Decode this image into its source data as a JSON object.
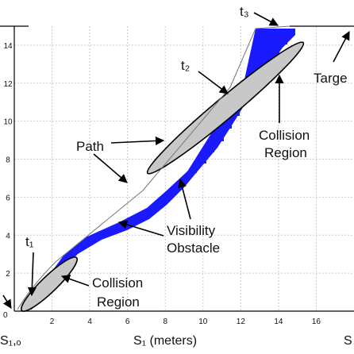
{
  "chart_data": {
    "type": "diagram",
    "xlabel": "S₁  (meters)",
    "x_ticks": [
      "0",
      "2",
      "4",
      "6",
      "8",
      "10",
      "12",
      "14",
      "16"
    ],
    "y_ticks": [
      "2",
      "4",
      "6",
      "8",
      "10",
      "12",
      "14"
    ],
    "y_zero_tick": "0",
    "s1o_label": "S₁,ₒ",
    "right_edge_label": "S",
    "xlim": [
      0,
      18
    ],
    "ylim": [
      0,
      15
    ],
    "grid": true,
    "annotations": {
      "t3": "t₃",
      "t2": "t₂",
      "t1": "t₁",
      "path": "Path",
      "target": "Targe",
      "collision_upper_line1": "Collision",
      "collision_upper_line2": "Region",
      "collision_lower_line1": "Collision",
      "collision_lower_line2": "Region",
      "visibility_line1": "Visibility",
      "visibility_line2": "Obstacle"
    },
    "colors": {
      "obstacle": "#1a1aff",
      "collision_region": "#c8c8c8",
      "path": "#777777",
      "axes": "#000000"
    }
  }
}
